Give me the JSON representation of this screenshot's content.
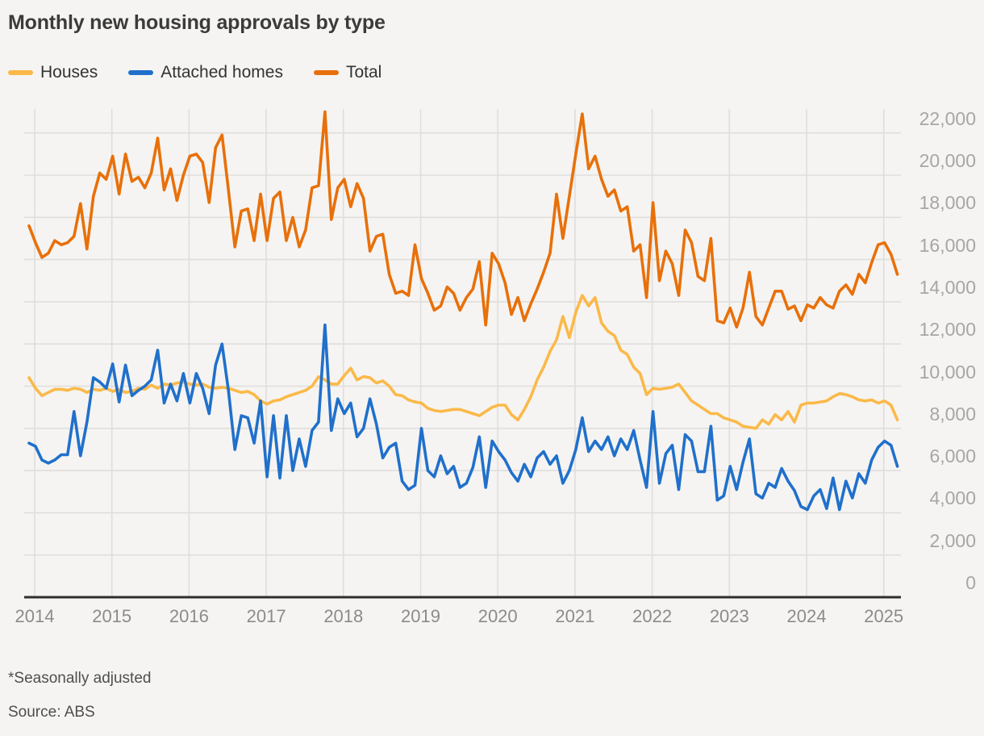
{
  "title": "Monthly new housing approvals by type",
  "legend": {
    "items": [
      {
        "label": "Houses"
      },
      {
        "label": "Attached homes"
      },
      {
        "label": "Total"
      }
    ]
  },
  "footnote": "*Seasonally adjusted",
  "source": "Source: ABS",
  "colors": {
    "houses": "#FBB949",
    "attached": "#2070CB",
    "total": "#E8700A",
    "background": "#f5f4f2",
    "gridline": "#dfdedb",
    "axis": "#2e2e2e",
    "x_tick_text": "#8b8b8b",
    "y_tick_text": "#a6a6a6"
  },
  "chart_data": {
    "type": "line",
    "frequency": "monthly",
    "x_start": "2014-01",
    "x_end": "2025-04",
    "title": "Monthly new housing approvals by type",
    "xlabel": "",
    "ylabel": "",
    "x_tick_labels": [
      "2014",
      "2015",
      "2016",
      "2017",
      "2018",
      "2019",
      "2020",
      "2021",
      "2022",
      "2023",
      "2024",
      "2025"
    ],
    "y_ticks": [
      0,
      2000,
      4000,
      6000,
      8000,
      10000,
      12000,
      14000,
      16000,
      18000,
      20000,
      22000
    ],
    "ylim": [
      0,
      23200
    ],
    "grid": true,
    "legend_position": "top",
    "series": [
      {
        "name": "Houses",
        "color": "#FBB949",
        "values": [
          10400,
          9900,
          9550,
          9700,
          9850,
          9850,
          9800,
          9900,
          9850,
          9700,
          9850,
          9800,
          9900,
          9750,
          9850,
          9700,
          9750,
          9900,
          9850,
          10050,
          9900,
          10100,
          10050,
          10150,
          10200,
          10100,
          10050,
          10100,
          9950,
          9900,
          9950,
          9900,
          9800,
          9700,
          9750,
          9600,
          9300,
          9150,
          9300,
          9350,
          9500,
          9600,
          9700,
          9800,
          10000,
          10450,
          10300,
          10100,
          10100,
          10500,
          10850,
          10300,
          10450,
          10400,
          10150,
          10250,
          10000,
          9600,
          9550,
          9350,
          9250,
          9200,
          8950,
          8850,
          8800,
          8850,
          8900,
          8900,
          8800,
          8700,
          8600,
          8800,
          9000,
          9100,
          9100,
          8650,
          8400,
          8900,
          9500,
          10300,
          10900,
          11650,
          12200,
          13300,
          12300,
          13500,
          14300,
          13800,
          14200,
          13000,
          12600,
          12400,
          11700,
          11500,
          10900,
          10600,
          9600,
          9900,
          9850,
          9900,
          9950,
          10100,
          9700,
          9300,
          9100,
          8900,
          8700,
          8700,
          8500,
          8400,
          8300,
          8100,
          8050,
          8000,
          8400,
          8200,
          8650,
          8400,
          8800,
          8300,
          9100,
          9200,
          9200,
          9250,
          9300,
          9500,
          9650,
          9600,
          9500,
          9350,
          9300,
          9350,
          9200,
          9300,
          9100,
          8400
        ]
      },
      {
        "name": "Attached homes",
        "color": "#2070CB",
        "values": [
          7300,
          7150,
          6500,
          6350,
          6500,
          6750,
          6750,
          8800,
          6700,
          8300,
          10400,
          10200,
          9900,
          11050,
          9250,
          11000,
          9550,
          9800,
          10000,
          10300,
          11700,
          9200,
          10100,
          9300,
          10600,
          9200,
          10600,
          9900,
          8700,
          11000,
          12000,
          9800,
          7000,
          8600,
          8500,
          7300,
          9300,
          5700,
          8600,
          5650,
          8600,
          6000,
          7500,
          6200,
          7900,
          8300,
          12900,
          7900,
          9400,
          8700,
          9200,
          7600,
          8000,
          9400,
          8200,
          6600,
          7100,
          7300,
          5500,
          5100,
          5300,
          8000,
          6000,
          5700,
          6700,
          5850,
          6200,
          5200,
          5400,
          6150,
          7600,
          5200,
          7400,
          6900,
          6500,
          5900,
          5500,
          6300,
          5700,
          6600,
          6900,
          6300,
          6700,
          5400,
          6000,
          7000,
          8500,
          6900,
          7400,
          7000,
          7600,
          6700,
          7500,
          7000,
          7900,
          6500,
          5200,
          8800,
          5400,
          6800,
          7200,
          5100,
          7700,
          7400,
          5950,
          5950,
          8100,
          4600,
          4800,
          6200,
          5100,
          6400,
          7500,
          4900,
          4700,
          5400,
          5200,
          6100,
          5500,
          5050,
          4300,
          4150,
          4800,
          5100,
          4200,
          5650,
          4150,
          5500,
          4700,
          5850,
          5400,
          6500,
          7100,
          7400,
          7200,
          6200
        ]
      },
      {
        "name": "Total",
        "color": "#E8700A",
        "values": [
          17600,
          16800,
          16100,
          16300,
          16900,
          16700,
          16800,
          17100,
          18650,
          16500,
          19000,
          20100,
          19800,
          20900,
          19100,
          21000,
          19700,
          19900,
          19400,
          20100,
          21750,
          19300,
          20300,
          18800,
          20000,
          20900,
          21000,
          20600,
          18700,
          21300,
          21900,
          19300,
          16600,
          18300,
          18400,
          16900,
          19100,
          16900,
          18900,
          19200,
          16900,
          18000,
          16600,
          17400,
          19400,
          19500,
          23000,
          17900,
          19400,
          19800,
          18500,
          19600,
          18900,
          16400,
          17100,
          17200,
          15300,
          14400,
          14500,
          14300,
          16700,
          15100,
          14400,
          13600,
          13800,
          14700,
          14400,
          13600,
          14200,
          14600,
          15900,
          12900,
          16300,
          15800,
          14900,
          13400,
          14200,
          13100,
          13900,
          14600,
          15400,
          16300,
          19100,
          17000,
          19000,
          21000,
          22900,
          20300,
          20900,
          19800,
          19000,
          19300,
          18300,
          18500,
          16400,
          16700,
          14200,
          18700,
          15000,
          16400,
          15800,
          14300,
          17400,
          16800,
          15200,
          15000,
          17000,
          13100,
          13000,
          13700,
          12800,
          13700,
          15400,
          13300,
          12900,
          13700,
          14500,
          14500,
          13650,
          13800,
          13100,
          13850,
          13700,
          14200,
          13850,
          13700,
          14500,
          14800,
          14350,
          15300,
          14900,
          15850,
          16700,
          16800,
          16250,
          15300
        ]
      }
    ]
  }
}
